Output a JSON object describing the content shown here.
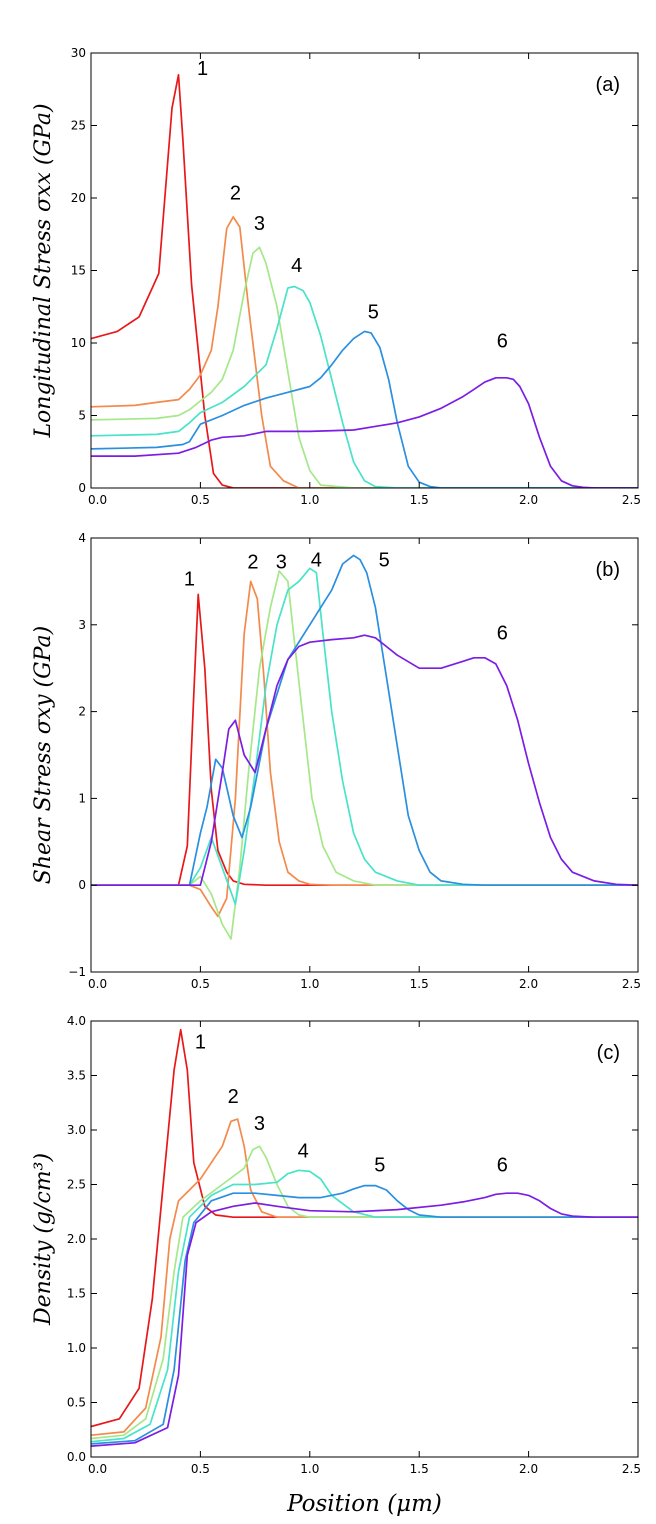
{
  "series_colors": [
    "#e8181a",
    "#f4894b",
    "#a5e88a",
    "#48e3c8",
    "#2a8fe0",
    "#7c1de3"
  ],
  "x_axis_label": "Position (μm)",
  "chart_data": [
    {
      "type": "line",
      "panel_label": "(a)",
      "ylabel": "Longitudinal Stress σxx (GPa)",
      "xlim": [
        0,
        2.5
      ],
      "ylim": [
        0,
        30
      ],
      "xticks": [
        "0.0",
        "0.5",
        "1.0",
        "1.5",
        "2.0",
        "2.5"
      ],
      "yticks": [
        "0",
        "5",
        "10",
        "15",
        "20",
        "25",
        "30"
      ],
      "series": [
        {
          "name": "1",
          "x": [
            0,
            0.12,
            0.22,
            0.28,
            0.31,
            0.37,
            0.4,
            0.42,
            0.46,
            0.52,
            0.56,
            0.6,
            0.65,
            0.8,
            2.5
          ],
          "y": [
            10.3,
            10.8,
            11.8,
            13.8,
            14.8,
            26.2,
            28.5,
            24,
            14,
            5,
            1,
            0.2,
            0,
            0,
            0
          ]
        },
        {
          "name": "2",
          "x": [
            0,
            0.2,
            0.3,
            0.4,
            0.45,
            0.5,
            0.55,
            0.58,
            0.62,
            0.65,
            0.68,
            0.72,
            0.78,
            0.82,
            0.88,
            0.95,
            1.1,
            2.5
          ],
          "y": [
            5.6,
            5.7,
            5.9,
            6.1,
            6.8,
            7.8,
            9.5,
            12.5,
            17.9,
            18.7,
            18.0,
            12.5,
            5,
            1.5,
            0.5,
            0,
            0,
            2.5e-09
          ]
        },
        {
          "name": "3",
          "x": [
            0,
            0.3,
            0.4,
            0.45,
            0.5,
            0.55,
            0.6,
            0.65,
            0.7,
            0.74,
            0.77,
            0.8,
            0.85,
            0.9,
            0.95,
            1.0,
            1.05,
            1.2,
            2.5
          ],
          "y": [
            4.7,
            4.8,
            5.0,
            5.4,
            6.0,
            6.6,
            7.5,
            9.5,
            13.5,
            16.2,
            16.6,
            15.5,
            12.5,
            8,
            3.5,
            1.2,
            0.2,
            0,
            0
          ]
        },
        {
          "name": "4",
          "x": [
            0,
            0.3,
            0.4,
            0.45,
            0.5,
            0.6,
            0.7,
            0.8,
            0.85,
            0.9,
            0.93,
            0.97,
            1.0,
            1.05,
            1.1,
            1.15,
            1.2,
            1.25,
            1.3,
            1.4,
            2.5
          ],
          "y": [
            3.6,
            3.7,
            3.9,
            4.5,
            5.2,
            5.9,
            7.0,
            8.5,
            11,
            13.8,
            13.9,
            13.6,
            12.8,
            10.5,
            7.5,
            4.5,
            1.8,
            0.5,
            0.1,
            0,
            0
          ]
        },
        {
          "name": "5",
          "x": [
            0,
            0.3,
            0.42,
            0.45,
            0.5,
            0.6,
            0.7,
            0.8,
            0.9,
            1.0,
            1.05,
            1.1,
            1.15,
            1.2,
            1.25,
            1.28,
            1.32,
            1.36,
            1.4,
            1.45,
            1.5,
            1.55,
            1.6,
            1.7,
            2.5
          ],
          "y": [
            2.7,
            2.8,
            3.0,
            3.2,
            4.4,
            5.0,
            5.7,
            6.2,
            6.6,
            7.0,
            7.6,
            8.5,
            9.5,
            10.3,
            10.8,
            10.7,
            9.7,
            7.5,
            4.5,
            1.5,
            0.4,
            0.1,
            0,
            0,
            0
          ]
        },
        {
          "name": "6",
          "x": [
            0,
            0.2,
            0.4,
            0.48,
            0.55,
            0.6,
            0.7,
            0.8,
            1.0,
            1.2,
            1.4,
            1.5,
            1.6,
            1.7,
            1.75,
            1.8,
            1.85,
            1.9,
            1.93,
            1.96,
            2.0,
            2.05,
            2.1,
            2.15,
            2.2,
            2.25,
            2.3,
            2.5
          ],
          "y": [
            2.2,
            2.2,
            2.4,
            2.8,
            3.3,
            3.5,
            3.6,
            3.9,
            3.9,
            4.0,
            4.5,
            4.9,
            5.5,
            6.3,
            6.8,
            7.3,
            7.6,
            7.6,
            7.5,
            7.0,
            5.8,
            3.5,
            1.5,
            0.5,
            0.15,
            0.05,
            0,
            0
          ]
        }
      ],
      "annotations": [
        {
          "text": "1",
          "x": 0.51,
          "y": 28.5
        },
        {
          "text": "2",
          "x": 0.66,
          "y": 19.9
        },
        {
          "text": "3",
          "x": 0.77,
          "y": 17.8
        },
        {
          "text": "4",
          "x": 0.94,
          "y": 14.9
        },
        {
          "text": "5",
          "x": 1.29,
          "y": 11.7
        },
        {
          "text": "6",
          "x": 1.88,
          "y": 9.7
        }
      ]
    },
    {
      "type": "line",
      "panel_label": "(b)",
      "ylabel": "Shear Stress σxy (GPa)",
      "xlim": [
        0,
        2.5
      ],
      "ylim": [
        -1,
        4
      ],
      "xticks": [
        "0.0",
        "0.5",
        "1.0",
        "1.5",
        "2.0",
        "2.5"
      ],
      "yticks": [
        "−1",
        "0",
        "1",
        "2",
        "3",
        "4"
      ],
      "series": [
        {
          "name": "1",
          "x": [
            0,
            0.4,
            0.44,
            0.47,
            0.49,
            0.52,
            0.55,
            0.58,
            0.62,
            0.65,
            0.7,
            0.8,
            2.5
          ],
          "y": [
            0,
            0,
            0.45,
            2.2,
            3.35,
            2.5,
            1.1,
            0.4,
            0.15,
            0.05,
            0.01,
            0,
            0
          ]
        },
        {
          "name": "2",
          "x": [
            0,
            0.45,
            0.5,
            0.55,
            0.58,
            0.62,
            0.66,
            0.7,
            0.73,
            0.76,
            0.79,
            0.82,
            0.86,
            0.9,
            0.95,
            1.0,
            1.1,
            2.5
          ],
          "y": [
            0,
            0,
            -0.05,
            -0.25,
            -0.36,
            -0.15,
            1.0,
            2.9,
            3.5,
            3.3,
            2.4,
            1.3,
            0.5,
            0.15,
            0.05,
            0.01,
            0,
            0
          ]
        },
        {
          "name": "3",
          "x": [
            0,
            0.45,
            0.5,
            0.55,
            0.6,
            0.64,
            0.68,
            0.72,
            0.77,
            0.82,
            0.86,
            0.9,
            0.93,
            0.97,
            1.01,
            1.06,
            1.12,
            1.2,
            1.3,
            2.5
          ],
          "y": [
            0,
            0,
            0.1,
            -0.1,
            -0.45,
            -0.62,
            0.2,
            1.3,
            2.5,
            3.2,
            3.62,
            3.5,
            2.8,
            1.9,
            1.0,
            0.45,
            0.15,
            0.05,
            0,
            0
          ]
        },
        {
          "name": "4",
          "x": [
            0,
            0.45,
            0.5,
            0.55,
            0.6,
            0.66,
            0.7,
            0.75,
            0.8,
            0.85,
            0.9,
            0.95,
            1.0,
            1.03,
            1.06,
            1.1,
            1.15,
            1.2,
            1.25,
            1.3,
            1.4,
            1.5,
            2.5
          ],
          "y": [
            0,
            0,
            0.2,
            0.55,
            0.2,
            -0.22,
            0.4,
            1.3,
            2.3,
            3.0,
            3.4,
            3.5,
            3.65,
            3.6,
            2.9,
            2.0,
            1.2,
            0.6,
            0.3,
            0.15,
            0.05,
            0,
            0
          ]
        },
        {
          "name": "5",
          "x": [
            0,
            0.45,
            0.5,
            0.53,
            0.57,
            0.6,
            0.65,
            0.69,
            0.73,
            0.8,
            0.9,
            1.0,
            1.1,
            1.15,
            1.2,
            1.23,
            1.26,
            1.3,
            1.35,
            1.4,
            1.45,
            1.5,
            1.55,
            1.6,
            1.7,
            1.8,
            2.5
          ],
          "y": [
            0,
            0,
            0.6,
            0.9,
            1.45,
            1.35,
            0.8,
            0.55,
            0.9,
            1.8,
            2.6,
            3.0,
            3.4,
            3.7,
            3.8,
            3.75,
            3.6,
            3.2,
            2.4,
            1.6,
            0.8,
            0.4,
            0.15,
            0.05,
            0.01,
            0,
            0
          ]
        },
        {
          "name": "6",
          "x": [
            0,
            0.5,
            0.55,
            0.6,
            0.63,
            0.66,
            0.7,
            0.75,
            0.8,
            0.85,
            0.9,
            0.95,
            1.0,
            1.1,
            1.2,
            1.25,
            1.3,
            1.35,
            1.4,
            1.5,
            1.6,
            1.7,
            1.75,
            1.8,
            1.85,
            1.9,
            1.95,
            2.0,
            2.05,
            2.1,
            2.15,
            2.2,
            2.3,
            2.4,
            2.5
          ],
          "y": [
            0,
            0,
            0.5,
            1.3,
            1.8,
            1.9,
            1.5,
            1.3,
            1.8,
            2.3,
            2.6,
            2.75,
            2.8,
            2.83,
            2.85,
            2.88,
            2.85,
            2.75,
            2.65,
            2.5,
            2.5,
            2.58,
            2.62,
            2.62,
            2.55,
            2.3,
            1.9,
            1.4,
            0.95,
            0.55,
            0.3,
            0.15,
            0.05,
            0.01,
            0
          ]
        }
      ],
      "annotations": [
        {
          "text": "1",
          "x": 0.45,
          "y": 3.45
        },
        {
          "text": "2",
          "x": 0.74,
          "y": 3.65
        },
        {
          "text": "3",
          "x": 0.87,
          "y": 3.65
        },
        {
          "text": "4",
          "x": 1.03,
          "y": 3.67
        },
        {
          "text": "5",
          "x": 1.34,
          "y": 3.67
        },
        {
          "text": "6",
          "x": 1.88,
          "y": 2.83
        }
      ]
    },
    {
      "type": "line",
      "panel_label": "(c)",
      "ylabel": "Density (g/cm³)",
      "xlim": [
        0,
        2.5
      ],
      "ylim": [
        0,
        4
      ],
      "xticks": [
        "0.0",
        "0.5",
        "1.0",
        "1.5",
        "2.0",
        "2.5"
      ],
      "yticks": [
        "0.0",
        "0.5",
        "1.0",
        "1.5",
        "2.0",
        "2.5",
        "3.0",
        "3.5",
        "4.0"
      ],
      "series": [
        {
          "name": "1",
          "x": [
            0,
            0.13,
            0.22,
            0.28,
            0.33,
            0.38,
            0.41,
            0.44,
            0.47,
            0.52,
            0.57,
            0.65,
            2.5
          ],
          "y": [
            0.28,
            0.35,
            0.63,
            1.45,
            2.5,
            3.55,
            3.92,
            3.55,
            2.7,
            2.3,
            2.22,
            2.2,
            2.2
          ]
        },
        {
          "name": "2",
          "x": [
            0,
            0.15,
            0.25,
            0.32,
            0.36,
            0.4,
            0.45,
            0.5,
            0.55,
            0.6,
            0.64,
            0.67,
            0.7,
            0.73,
            0.78,
            0.85,
            1.0,
            2.5
          ],
          "y": [
            0.2,
            0.23,
            0.45,
            1.1,
            2.0,
            2.35,
            2.45,
            2.55,
            2.7,
            2.85,
            3.08,
            3.1,
            2.85,
            2.45,
            2.25,
            2.2,
            2.2,
            2.2
          ]
        },
        {
          "name": "3",
          "x": [
            0,
            0.15,
            0.25,
            0.33,
            0.38,
            0.42,
            0.5,
            0.6,
            0.7,
            0.74,
            0.77,
            0.8,
            0.85,
            0.9,
            0.95,
            1.0,
            1.1,
            2.5
          ],
          "y": [
            0.17,
            0.2,
            0.35,
            0.9,
            1.7,
            2.2,
            2.35,
            2.5,
            2.65,
            2.82,
            2.85,
            2.75,
            2.5,
            2.3,
            2.22,
            2.2,
            2.2,
            2.2
          ]
        },
        {
          "name": "4",
          "x": [
            0,
            0.15,
            0.27,
            0.35,
            0.4,
            0.45,
            0.55,
            0.65,
            0.75,
            0.85,
            0.9,
            0.95,
            1.0,
            1.05,
            1.1,
            1.2,
            1.3,
            2.5
          ],
          "y": [
            0.14,
            0.17,
            0.3,
            0.8,
            1.7,
            2.2,
            2.4,
            2.5,
            2.5,
            2.52,
            2.6,
            2.63,
            2.62,
            2.55,
            2.4,
            2.25,
            2.2,
            2.2
          ]
        },
        {
          "name": "5",
          "x": [
            0,
            0.2,
            0.33,
            0.38,
            0.43,
            0.47,
            0.55,
            0.65,
            0.75,
            0.85,
            0.95,
            1.05,
            1.15,
            1.2,
            1.25,
            1.3,
            1.35,
            1.4,
            1.45,
            1.5,
            1.6,
            2.5
          ],
          "y": [
            0.12,
            0.15,
            0.3,
            0.8,
            1.8,
            2.15,
            2.35,
            2.42,
            2.42,
            2.4,
            2.38,
            2.38,
            2.42,
            2.46,
            2.49,
            2.49,
            2.45,
            2.35,
            2.27,
            2.22,
            2.2,
            2.2
          ]
        },
        {
          "name": "6",
          "x": [
            0,
            0.2,
            0.35,
            0.4,
            0.44,
            0.48,
            0.55,
            0.65,
            0.75,
            0.85,
            1.0,
            1.2,
            1.4,
            1.6,
            1.7,
            1.8,
            1.85,
            1.9,
            1.95,
            2.0,
            2.05,
            2.1,
            2.15,
            2.2,
            2.3,
            2.5
          ],
          "y": [
            0.1,
            0.13,
            0.27,
            0.75,
            1.85,
            2.15,
            2.25,
            2.3,
            2.33,
            2.3,
            2.26,
            2.25,
            2.27,
            2.31,
            2.34,
            2.38,
            2.41,
            2.42,
            2.42,
            2.4,
            2.35,
            2.28,
            2.23,
            2.21,
            2.2,
            2.2
          ]
        }
      ],
      "annotations": [
        {
          "text": "1",
          "x": 0.5,
          "y": 3.75
        },
        {
          "text": "2",
          "x": 0.65,
          "y": 3.25
        },
        {
          "text": "3",
          "x": 0.77,
          "y": 3.0
        },
        {
          "text": "4",
          "x": 0.97,
          "y": 2.75
        },
        {
          "text": "5",
          "x": 1.32,
          "y": 2.62
        },
        {
          "text": "6",
          "x": 1.88,
          "y": 2.62
        }
      ]
    }
  ]
}
